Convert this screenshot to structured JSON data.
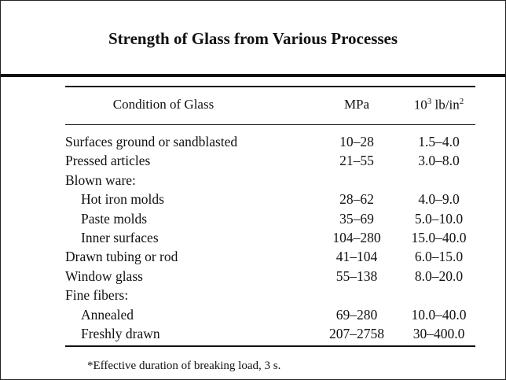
{
  "title": "Strength of Glass from Various Processes",
  "table": {
    "headers": {
      "condition": "Condition of Glass",
      "mpa": "MPa",
      "psi_base": "10",
      "psi_exp": "3",
      "psi_unit": "lb/in",
      "psi_unit_exp": "2"
    },
    "rows": [
      {
        "condition": "Surfaces ground or sandblasted",
        "indent": false,
        "mpa": "10–28",
        "psi": "1.5–4.0"
      },
      {
        "condition": "Pressed articles",
        "indent": false,
        "mpa": "21–55",
        "psi": "3.0–8.0"
      },
      {
        "condition": "Blown ware:",
        "indent": false,
        "mpa": "",
        "psi": ""
      },
      {
        "condition": "Hot iron molds",
        "indent": true,
        "mpa": "28–62",
        "psi": "4.0–9.0"
      },
      {
        "condition": "Paste molds",
        "indent": true,
        "mpa": "35–69",
        "psi": "5.0–10.0"
      },
      {
        "condition": "Inner surfaces",
        "indent": true,
        "mpa": "104–280",
        "psi": "15.0–40.0"
      },
      {
        "condition": "Drawn tubing or rod",
        "indent": false,
        "mpa": "41–104",
        "psi": "6.0–15.0"
      },
      {
        "condition": "Window glass",
        "indent": false,
        "mpa": "55–138",
        "psi": "8.0–20.0"
      },
      {
        "condition": "Fine fibers:",
        "indent": false,
        "mpa": "",
        "psi": ""
      },
      {
        "condition": "Annealed",
        "indent": true,
        "mpa": "69–280",
        "psi": "10.0–40.0"
      },
      {
        "condition": "Freshly drawn",
        "indent": true,
        "mpa": "207–2758",
        "psi": "30–400.0"
      }
    ]
  },
  "footnote": "*Effective duration of breaking load, 3 s."
}
